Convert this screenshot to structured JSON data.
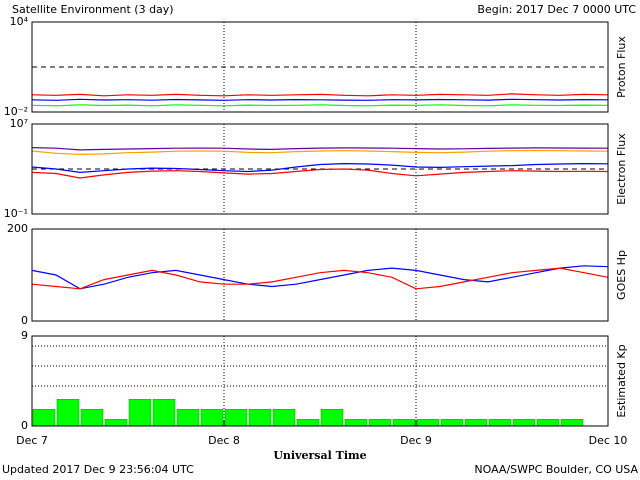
{
  "page": {
    "title": "Satellite Environment (3 day)",
    "begin": "Begin:  2017 Dec 7 0000 UTC",
    "xlabel": "Universal Time",
    "updated": "Updated 2017 Dec  9 23:56:04 UTC",
    "credit": "NOAA/SWPC Boulder, CO USA"
  },
  "chart_data": [
    {
      "type": "line",
      "ylabel": "Proton Flux",
      "log": true,
      "ylim": [
        0.01,
        10000
      ],
      "yticks": [
        {
          "value": 10000,
          "label": "10⁴"
        },
        {
          "value": 0.01,
          "label": "10⁻²"
        }
      ],
      "hlines": [
        10
      ],
      "hline_style": "dashed",
      "xlim": [
        0,
        72
      ],
      "x": [
        0,
        3,
        6,
        9,
        12,
        15,
        18,
        21,
        24,
        27,
        30,
        33,
        36,
        39,
        42,
        45,
        48,
        51,
        54,
        57,
        60,
        63,
        66,
        69,
        72
      ],
      "series": [
        {
          "color": "#ff0000",
          "values": [
            0.14,
            0.13,
            0.15,
            0.12,
            0.14,
            0.13,
            0.15,
            0.13,
            0.12,
            0.14,
            0.13,
            0.14,
            0.15,
            0.13,
            0.12,
            0.14,
            0.13,
            0.15,
            0.14,
            0.13,
            0.16,
            0.14,
            0.13,
            0.15,
            0.14
          ]
        },
        {
          "color": "#0000ff",
          "values": [
            0.065,
            0.06,
            0.07,
            0.063,
            0.066,
            0.061,
            0.068,
            0.064,
            0.06,
            0.066,
            0.063,
            0.067,
            0.065,
            0.062,
            0.06,
            0.066,
            0.064,
            0.068,
            0.065,
            0.062,
            0.07,
            0.066,
            0.063,
            0.067,
            0.065
          ]
        },
        {
          "color": "#00ff00",
          "values": [
            0.028,
            0.026,
            0.03,
            0.027,
            0.029,
            0.026,
            0.03,
            0.028,
            0.026,
            0.029,
            0.027,
            0.028,
            0.03,
            0.027,
            0.026,
            0.029,
            0.028,
            0.03,
            0.027,
            0.026,
            0.03,
            0.028,
            0.027,
            0.029,
            0.028
          ]
        }
      ]
    },
    {
      "type": "line",
      "ylabel": "Electron Flux",
      "log": true,
      "ylim": [
        0.1,
        10000000
      ],
      "yticks": [
        {
          "value": 10000000,
          "label": "10⁷"
        },
        {
          "value": 0.1,
          "label": "10⁻¹"
        }
      ],
      "hlines": [
        1000
      ],
      "hline_style": "dashed",
      "xlim": [
        0,
        72
      ],
      "x": [
        0,
        3,
        6,
        9,
        12,
        15,
        18,
        21,
        24,
        27,
        30,
        33,
        36,
        39,
        42,
        45,
        48,
        51,
        54,
        57,
        60,
        63,
        66,
        69,
        72
      ],
      "series": [
        {
          "color": "#6000a0",
          "values": [
            80000,
            70000,
            50000,
            55000,
            60000,
            65000,
            70000,
            72000,
            70000,
            60000,
            55000,
            65000,
            72000,
            75000,
            74000,
            70000,
            65000,
            60000,
            62000,
            68000,
            72000,
            75000,
            74000,
            72000,
            70000
          ]
        },
        {
          "color": "#ffa000",
          "values": [
            40000,
            25000,
            20000,
            22000,
            28000,
            32000,
            38000,
            40000,
            38000,
            30000,
            28000,
            35000,
            40000,
            42000,
            40000,
            35000,
            30000,
            28000,
            32000,
            38000,
            42000,
            44000,
            42000,
            40000,
            38000
          ]
        },
        {
          "color": "#0000ff",
          "values": [
            1500,
            1000,
            500,
            700,
            1000,
            1200,
            1100,
            900,
            700,
            600,
            800,
            1500,
            2500,
            3000,
            2800,
            2200,
            1500,
            1400,
            1600,
            1800,
            2000,
            2500,
            2800,
            3000,
            2900
          ]
        },
        {
          "color": "#ff0000",
          "values": [
            500,
            400,
            160,
            300,
            500,
            650,
            700,
            600,
            450,
            350,
            400,
            600,
            900,
            1000,
            800,
            400,
            250,
            350,
            500,
            600,
            700,
            650,
            600,
            620,
            600
          ]
        }
      ]
    },
    {
      "type": "line",
      "ylabel": "GOES Hp",
      "ylim": [
        0,
        200
      ],
      "yticks": [
        0,
        200
      ],
      "xlim": [
        0,
        72
      ],
      "x": [
        0,
        3,
        6,
        9,
        12,
        15,
        18,
        21,
        24,
        27,
        30,
        33,
        36,
        39,
        42,
        45,
        48,
        51,
        54,
        57,
        60,
        63,
        66,
        69,
        72
      ],
      "series": [
        {
          "color": "#0000ff",
          "values": [
            110,
            100,
            70,
            80,
            95,
            105,
            110,
            100,
            90,
            80,
            75,
            80,
            90,
            100,
            110,
            115,
            110,
            100,
            90,
            85,
            95,
            105,
            115,
            120,
            118
          ]
        },
        {
          "color": "#ff0000",
          "values": [
            80,
            75,
            70,
            90,
            100,
            110,
            100,
            85,
            80,
            80,
            85,
            95,
            105,
            110,
            105,
            95,
            70,
            75,
            85,
            95,
            105,
            110,
            115,
            105,
            95
          ]
        }
      ]
    },
    {
      "type": "bar",
      "ylabel": "Estimated Kp",
      "ylim": [
        0,
        9
      ],
      "yticks": [
        0,
        9
      ],
      "hlines": [
        4,
        6,
        8
      ],
      "hline_style": "dotted",
      "xlim": [
        0,
        72
      ],
      "color": "#00ff00",
      "x": [
        0,
        3,
        6,
        9,
        12,
        15,
        18,
        21,
        24,
        27,
        30,
        33,
        36,
        39,
        42,
        45,
        48,
        51,
        54,
        57,
        60,
        63,
        66,
        69
      ],
      "values": [
        1.67,
        2.67,
        1.67,
        0.67,
        2.67,
        2.67,
        1.67,
        1.67,
        1.67,
        1.67,
        1.67,
        0.67,
        1.67,
        0.67,
        0.67,
        0.67,
        0.67,
        0.67,
        0.67,
        0.67,
        0.67,
        0.67,
        0.67,
        null
      ],
      "xticks": [
        {
          "value": 0,
          "label": "Dec 7"
        },
        {
          "value": 24,
          "label": "Dec 8"
        },
        {
          "value": 48,
          "label": "Dec 9"
        },
        {
          "value": 72,
          "label": "Dec 10"
        }
      ]
    }
  ]
}
